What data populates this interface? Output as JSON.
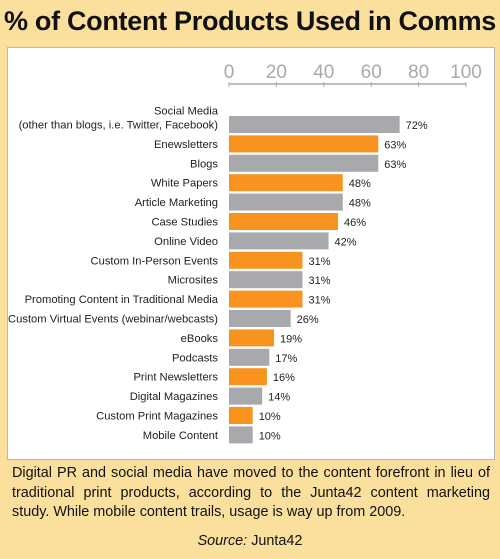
{
  "title": "% of Content Products Used in Comms",
  "caption": "Digital PR and social media have moved to the content forefront in lieu of traditional print products, according to the Junta42 content marketing study. While mobile content trails, usage is way up from 2009.",
  "source": {
    "label": "Source:",
    "name": "Junta42"
  },
  "colors": {
    "orange": "#f7931e",
    "gray": "#a7a9ac",
    "background": "#fbdf9c"
  },
  "chart_data": {
    "type": "bar",
    "orientation": "horizontal",
    "title": "% of Content Products Used in Comms",
    "xlim": [
      0,
      100
    ],
    "x_ticks": [
      0,
      20,
      40,
      60,
      80,
      100
    ],
    "unit": "%",
    "grid": false,
    "categories": [
      [
        "Social Media",
        "(other than blogs, i.e. Twitter, Facebook)"
      ],
      [
        "Enewsletters"
      ],
      [
        "Blogs"
      ],
      [
        "White Papers"
      ],
      [
        "Article Marketing"
      ],
      [
        "Case Studies"
      ],
      [
        "Online Video"
      ],
      [
        "Custom In-Person Events"
      ],
      [
        "Microsites"
      ],
      [
        "Promoting Content in Traditional Media"
      ],
      [
        "Custom Virtual Events (webinar/webcasts)"
      ],
      [
        "eBooks"
      ],
      [
        "Podcasts"
      ],
      [
        "Print Newsletters"
      ],
      [
        "Digital Magazines"
      ],
      [
        "Custom Print Magazines"
      ],
      [
        "Mobile Content"
      ]
    ],
    "values": [
      72,
      63,
      63,
      48,
      48,
      46,
      42,
      31,
      31,
      31,
      26,
      19,
      17,
      16,
      14,
      10,
      10
    ],
    "bar_colors": [
      "gray",
      "orange",
      "gray",
      "orange",
      "gray",
      "orange",
      "gray",
      "orange",
      "gray",
      "orange",
      "gray",
      "orange",
      "gray",
      "orange",
      "gray",
      "orange",
      "gray"
    ]
  }
}
